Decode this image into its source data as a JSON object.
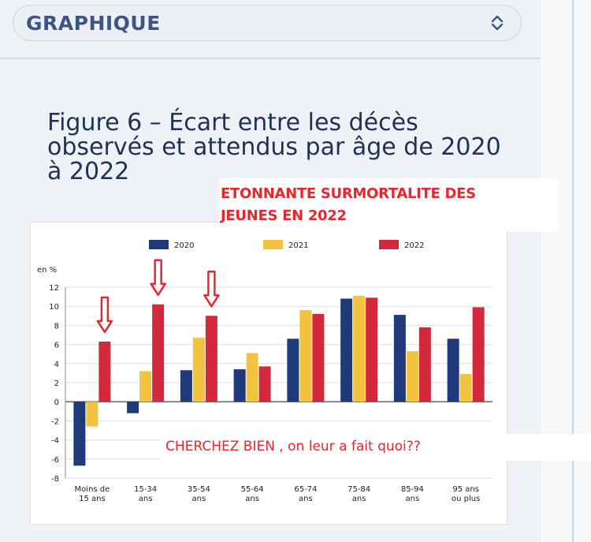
{
  "header": {
    "select_label": "GRAPHIQUE",
    "select_icon": "chevron-up-down-icon"
  },
  "figure": {
    "title": "Figure 6 – Écart entre les décès observés et attendus par âge de 2020 à 2022"
  },
  "annotations": {
    "top_note_line1": "ETONNANTE SURMORTALITE DES",
    "top_note_line2": "JEUNES EN 2022",
    "bottom_note": "CHERCHEZ BIEN , on leur a fait quoi??",
    "arrow_icon": "red-down-arrow-icon",
    "arrow_categories": [
      "Moins de 15 ans",
      "15-34 ans",
      "35-54 ans"
    ],
    "color": "#e8262e"
  },
  "chart_data": {
    "type": "bar",
    "unit_label": "en %",
    "categories": [
      [
        "Moins de",
        "15 ans"
      ],
      [
        "15-34",
        "ans"
      ],
      [
        "35-54",
        "ans"
      ],
      [
        "55-64",
        "ans"
      ],
      [
        "65-74",
        "ans"
      ],
      [
        "75-84",
        "ans"
      ],
      [
        "85-94",
        "ans"
      ],
      [
        "95 ans",
        "ou plus"
      ]
    ],
    "series": [
      {
        "name": "2020",
        "color": "#1f3a7a",
        "values": [
          -6.7,
          -1.2,
          3.3,
          3.4,
          6.6,
          10.8,
          9.1,
          6.6
        ]
      },
      {
        "name": "2021",
        "color": "#f2c33f",
        "values": [
          -2.6,
          3.2,
          6.7,
          5.1,
          9.6,
          11.1,
          5.3,
          2.9
        ]
      },
      {
        "name": "2022",
        "color": "#d22a3c",
        "values": [
          6.3,
          10.2,
          9.0,
          3.7,
          9.2,
          10.9,
          7.8,
          9.9
        ]
      }
    ],
    "ylim": [
      -8,
      12
    ],
    "yticks": [
      12,
      10,
      8,
      6,
      4,
      2,
      0,
      -2,
      -4,
      -6,
      -8
    ],
    "grid": true,
    "legend": "top"
  }
}
